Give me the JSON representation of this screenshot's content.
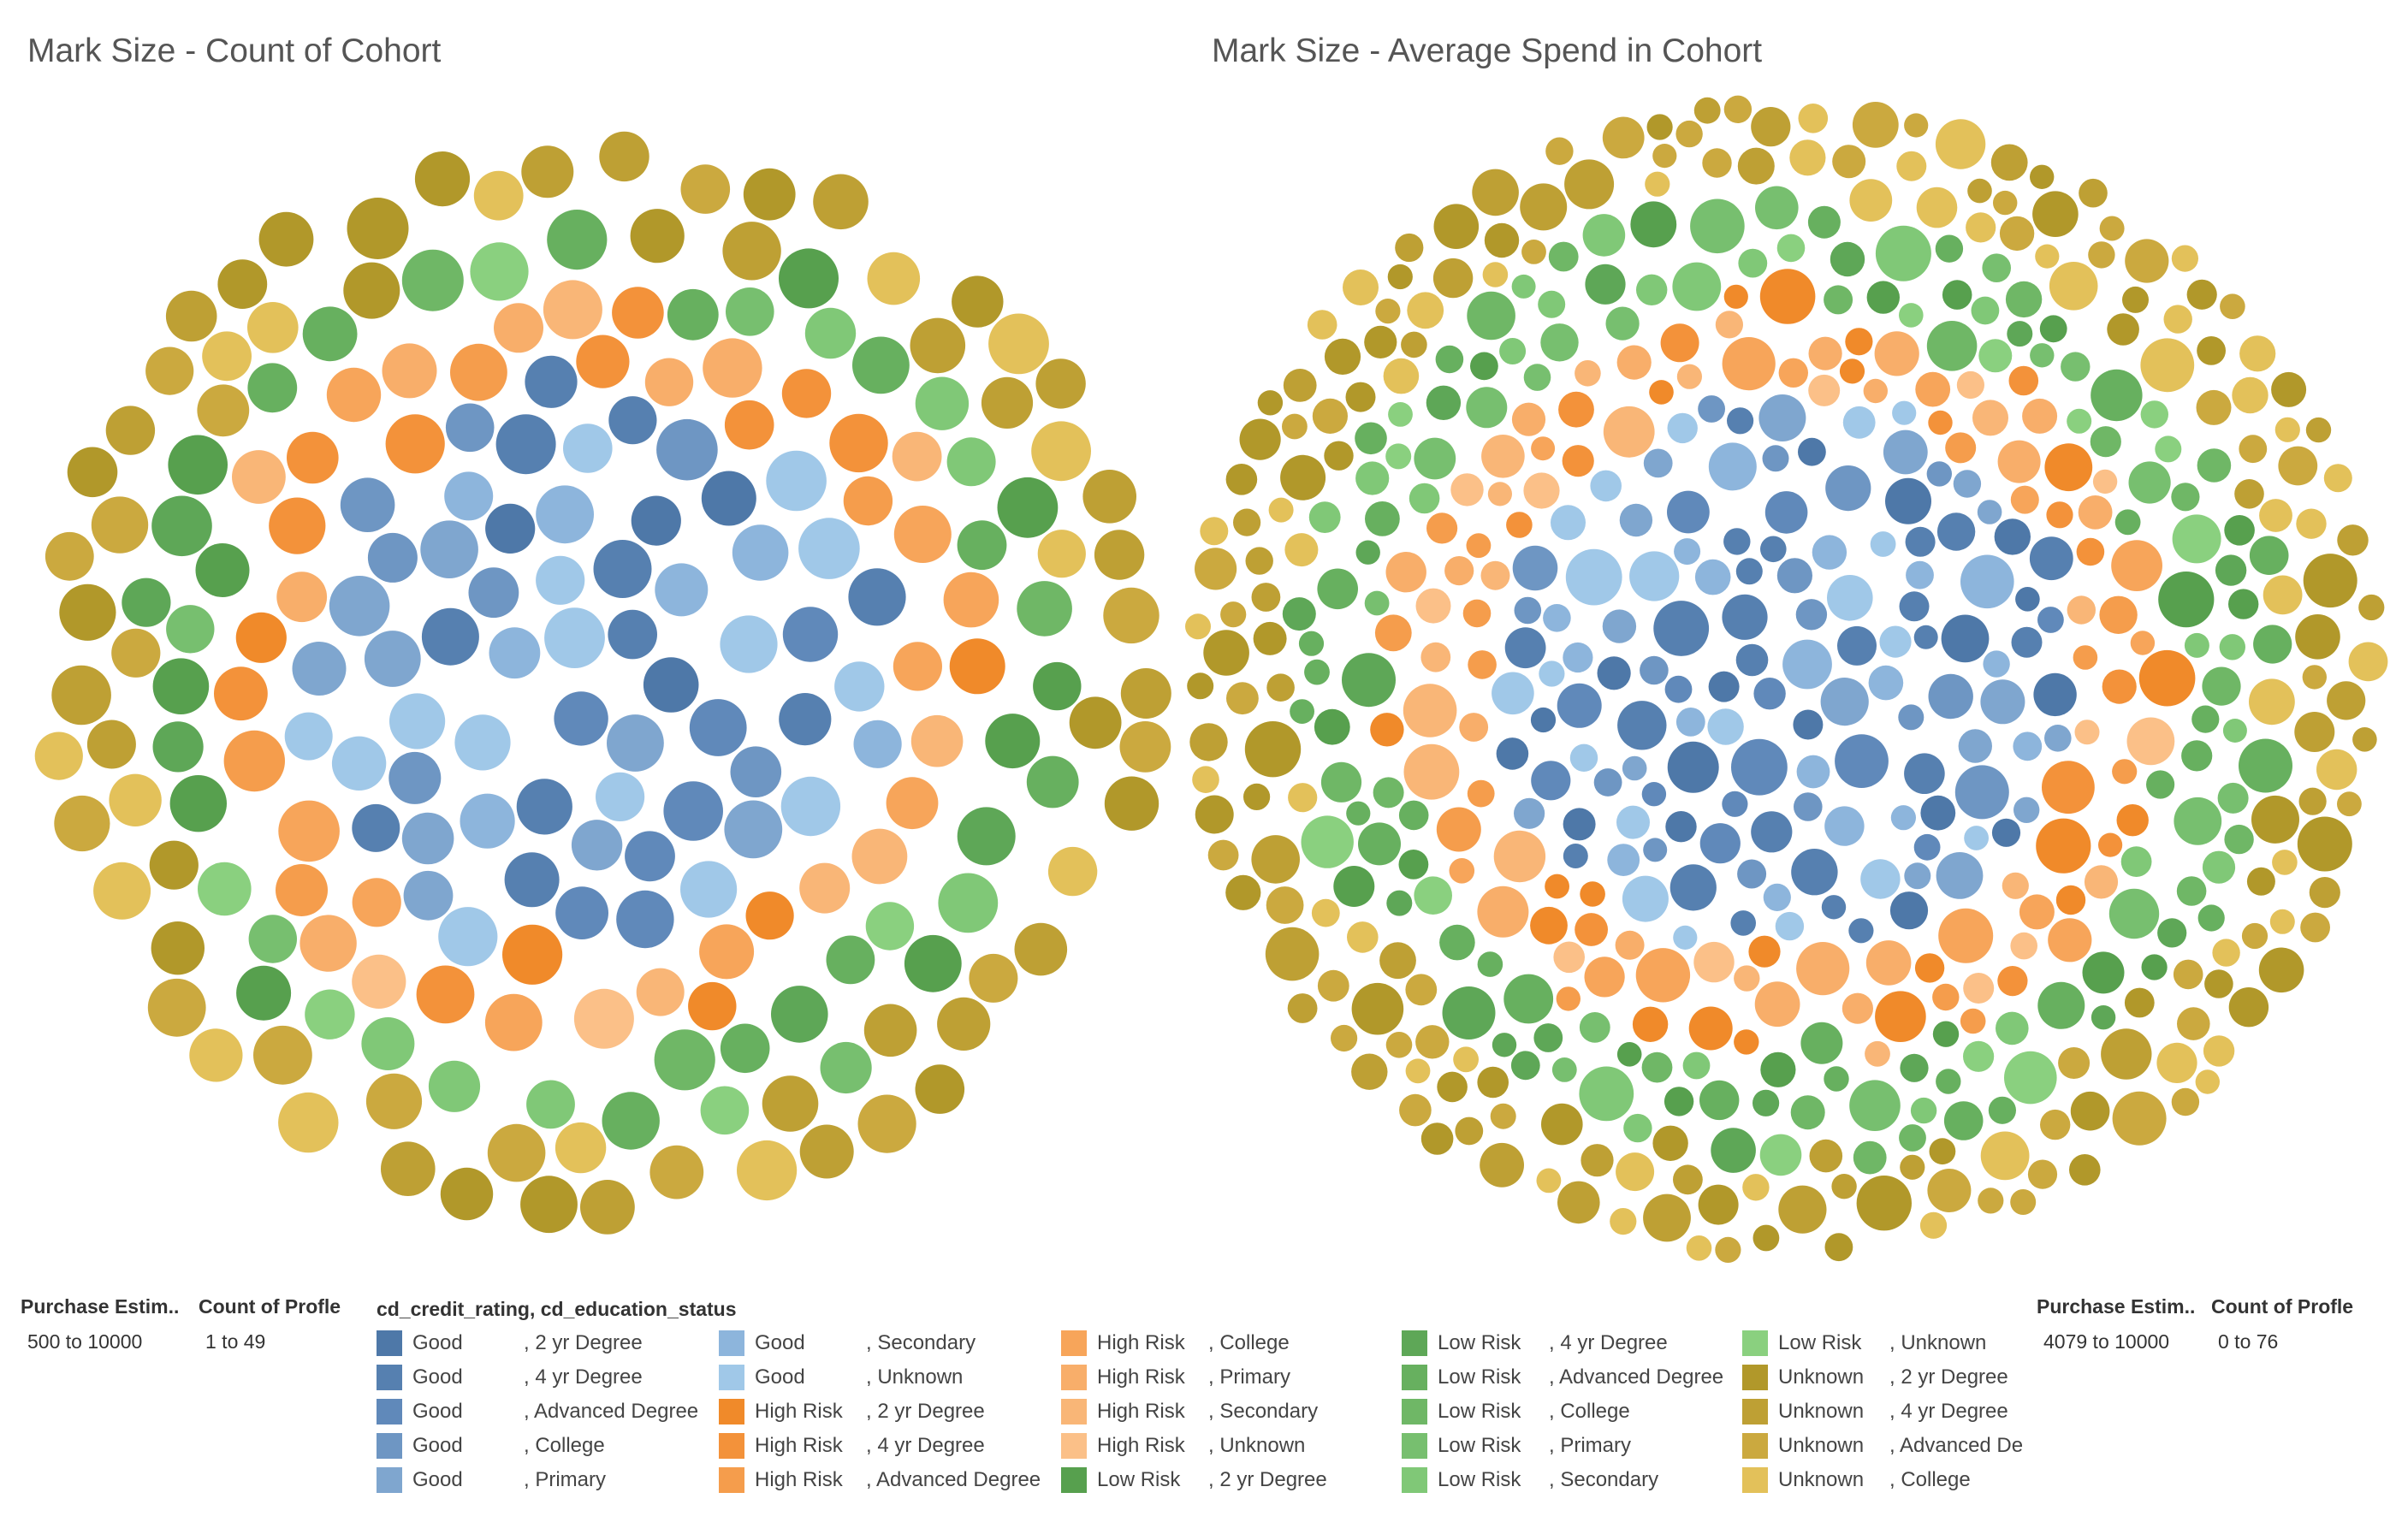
{
  "titles": {
    "left": "Mark Size - Count of Cohort",
    "right": "Mark Size - Average Spend in Cohort"
  },
  "filters": {
    "left": {
      "purchase_label": "Purchase Estim..",
      "purchase_value": "500 to 10000",
      "count_label": "Count of Profle",
      "count_value": "1 to 49"
    },
    "right": {
      "purchase_label": "Purchase Estim..",
      "purchase_value": "4079 to 10000",
      "count_label": "Count of Profle",
      "count_value": "0 to 76"
    }
  },
  "legend": {
    "title": "cd_credit_rating, cd_education_status",
    "items": [
      {
        "a": "Good",
        "b": ", 2 yr Degree",
        "color": "#4e78a8"
      },
      {
        "a": "Good",
        "b": ", 4 yr Degree",
        "color": "#5680b0"
      },
      {
        "a": "Good",
        "b": ", Advanced Degree",
        "color": "#6089ba"
      },
      {
        "a": "Good",
        "b": ", College",
        "color": "#6e96c3"
      },
      {
        "a": "Good",
        "b": ", Primary",
        "color": "#7fa6cf"
      },
      {
        "a": "Good",
        "b": ", Secondary",
        "color": "#8db5dc"
      },
      {
        "a": "Good",
        "b": ", Unknown",
        "color": "#a0c8e8"
      },
      {
        "a": "High Risk",
        "b": ", 2 yr Degree",
        "color": "#f08a2a"
      },
      {
        "a": "High Risk",
        "b": ", 4 yr Degree",
        "color": "#f3923a"
      },
      {
        "a": "High Risk",
        "b": ", Advanced Degree",
        "color": "#f59d4c"
      },
      {
        "a": "High Risk",
        "b": ", College",
        "color": "#f7a55a"
      },
      {
        "a": "High Risk",
        "b": ", Primary",
        "color": "#f8ae6a"
      },
      {
        "a": "High Risk",
        "b": ", Secondary",
        "color": "#f9b677"
      },
      {
        "a": "High Risk",
        "b": ", Unknown",
        "color": "#fbc088"
      },
      {
        "a": "Low Risk",
        "b": ", 2 yr Degree",
        "color": "#57a04e"
      },
      {
        "a": "Low Risk",
        "b": ", 4 yr Degree",
        "color": "#5ea757"
      },
      {
        "a": "Low Risk",
        "b": ", Advanced Degree",
        "color": "#67b05f"
      },
      {
        "a": "Low Risk",
        "b": ", College",
        "color": "#6fb766"
      },
      {
        "a": "Low Risk",
        "b": ", Primary",
        "color": "#77bf6f"
      },
      {
        "a": "Low Risk",
        "b": ", Secondary",
        "color": "#80c877"
      },
      {
        "a": "Low Risk",
        "b": ", Unknown",
        "color": "#8ad07f"
      },
      {
        "a": "Unknown",
        "b": ", 2 yr Degree",
        "color": "#b1982a"
      },
      {
        "a": "Unknown",
        "b": ", 4 yr Degree",
        "color": "#bea034"
      },
      {
        "a": "Unknown",
        "b": ", Advanced De",
        "color": "#cba93f"
      },
      {
        "a": "Unknown",
        "b": ", College",
        "color": "#e3c15a"
      }
    ]
  },
  "chart_data": [
    {
      "type": "packed-bubble",
      "title": "Mark Size - Count of Cohort",
      "size_measure": "Count of Profle",
      "size_range": [
        1,
        49
      ],
      "color_filter_range": [
        500,
        10000
      ],
      "layout": "concentric-rings",
      "ring_order_center_to_edge": [
        "Good",
        "High Risk",
        "Low Risk",
        "Unknown"
      ],
      "approx_marks_per_group": {
        "Good": 70,
        "High Risk": 75,
        "Low Risk": 85,
        "Unknown": 95
      }
    },
    {
      "type": "packed-bubble",
      "title": "Mark Size - Average Spend in Cohort",
      "size_measure": "Average Spend",
      "size_range": [
        0,
        76
      ],
      "color_filter_range": [
        4079,
        10000
      ],
      "layout": "concentric-rings",
      "ring_order_center_to_edge": [
        "Good",
        "High Risk",
        "Low Risk",
        "Unknown"
      ],
      "approx_marks_per_group": {
        "Good": 120,
        "High Risk": 125,
        "Low Risk": 150,
        "Unknown": 150
      }
    }
  ]
}
